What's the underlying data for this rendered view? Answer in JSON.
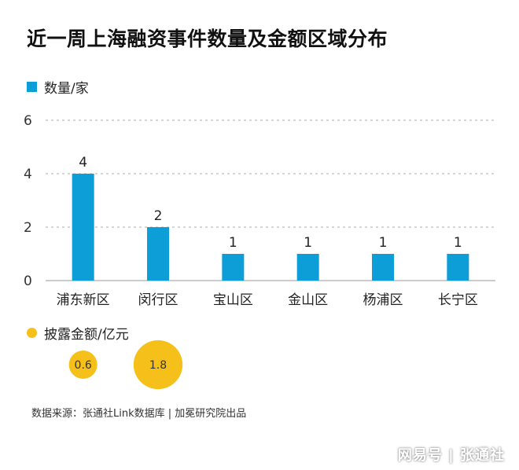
{
  "title": "近一周上海融资事件数量及金额区域分布",
  "legend_count": "数量/家",
  "legend_amount": "披露金额/亿元",
  "source": "数据来源：张通社Link数据库 | 加冕研究院出品",
  "watermark": "网易号 | 张通社",
  "colors": {
    "bar": "#0d9ed8",
    "bubble": "#f6c01a",
    "grid": "#bdbdbd"
  },
  "chart_data": {
    "type": "bar",
    "categories": [
      "浦东新区",
      "闵行区",
      "宝山区",
      "金山区",
      "杨浦区",
      "长宁区"
    ],
    "series": [
      {
        "name": "数量/家",
        "values": [
          4,
          2,
          1,
          1,
          1,
          1
        ]
      },
      {
        "name": "披露金额/亿元",
        "values": [
          0.6,
          1.8,
          null,
          null,
          null,
          null
        ],
        "labels": [
          "0.6",
          "1.8",
          "",
          "",
          "",
          ""
        ]
      }
    ],
    "y_ticks": [
      "0",
      "2",
      "4",
      "6"
    ],
    "ylim": [
      0,
      6
    ],
    "grid": "dashed horizontal",
    "title": "近一周上海融资事件数量及金额区域分布"
  }
}
